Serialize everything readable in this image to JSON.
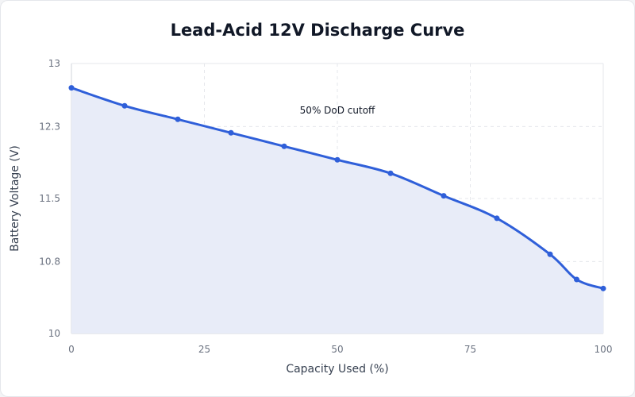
{
  "chart_data": {
    "type": "area",
    "title": "Lead-Acid 12V Discharge Curve",
    "xlabel": "Capacity Used (%)",
    "ylabel": "Battery Voltage (V)",
    "xlim": [
      0,
      100
    ],
    "ylim": [
      10,
      13
    ],
    "x_ticks": [
      "0",
      "25",
      "50",
      "75",
      "100"
    ],
    "y_ticks": [
      "10",
      "10.8",
      "11.5",
      "12.3",
      "13"
    ],
    "grid": true,
    "series": [
      {
        "x": [
          0,
          10,
          20,
          30,
          40,
          50,
          60,
          70,
          80,
          90,
          95,
          100
        ],
        "values": [
          12.73,
          12.53,
          12.38,
          12.23,
          12.08,
          11.93,
          11.78,
          11.53,
          11.28,
          10.88,
          10.6,
          10.5
        ]
      }
    ],
    "annotations": [
      {
        "text": "50% DoD cutoff",
        "x": 50,
        "y": 12.5
      }
    ],
    "colors": {
      "line": "#2f5fd9",
      "fill": "#e8ecf8",
      "grid": "#e5e7eb",
      "axis": "#d1d5db"
    }
  }
}
